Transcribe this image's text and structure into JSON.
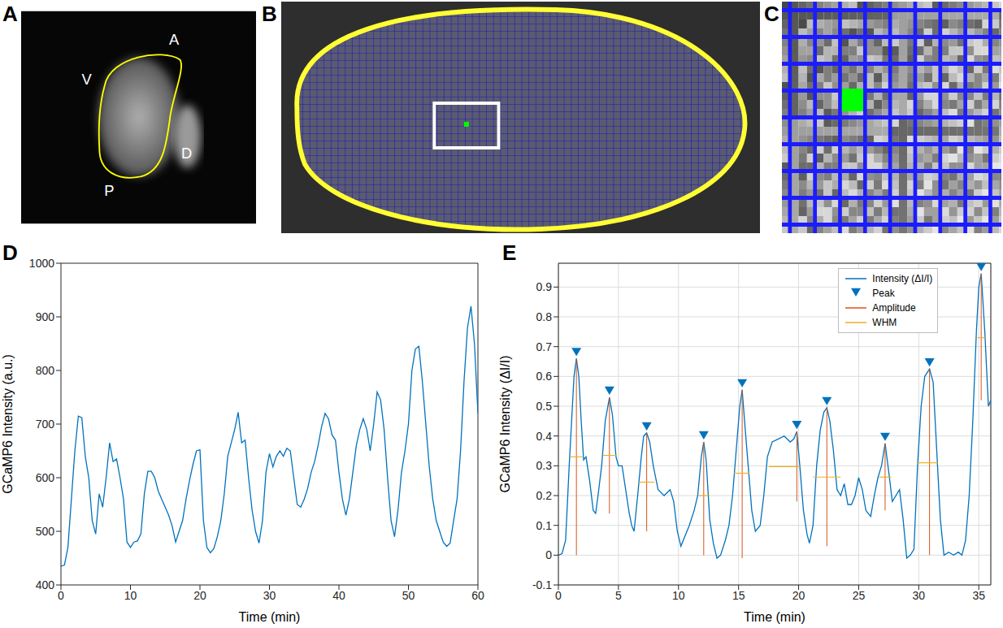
{
  "panel_letters": [
    "A",
    "B",
    "C",
    "D",
    "E"
  ],
  "image_labels": [
    "A",
    "V",
    "D",
    "P"
  ],
  "chart_data": [
    {
      "type": "line",
      "x_label": "Time (min)",
      "y_label": "GCaMP6 Intensity (a.u.)",
      "x": [
        0,
        0.5,
        1,
        1.5,
        2,
        2.5,
        3,
        3.5,
        4,
        4.5,
        5,
        5.5,
        6,
        6.5,
        7,
        7.5,
        8,
        8.5,
        9,
        9.5,
        10,
        10.5,
        11,
        11.5,
        12,
        12.5,
        13,
        13.5,
        14,
        14.5,
        15,
        15.5,
        16,
        16.5,
        17,
        17.5,
        18,
        18.5,
        19,
        19.5,
        20,
        20.5,
        21,
        21.5,
        22,
        22.5,
        23,
        23.5,
        24,
        24.5,
        25,
        25.5,
        26,
        26.5,
        27,
        27.5,
        28,
        28.5,
        29,
        29.5,
        30,
        30.5,
        31,
        31.5,
        32,
        32.5,
        33,
        33.5,
        34,
        34.5,
        35,
        35.5,
        36,
        36.5,
        37,
        37.5,
        38,
        38.5,
        39,
        39.5,
        40,
        40.5,
        41,
        41.5,
        42,
        42.5,
        43,
        43.5,
        44,
        44.5,
        45,
        45.5,
        46,
        46.5,
        47,
        47.5,
        48,
        48.5,
        49,
        49.5,
        50,
        50.5,
        51,
        51.5,
        52,
        52.5,
        53,
        53.5,
        54,
        54.5,
        55,
        55.5,
        56,
        56.5,
        57,
        57.5,
        58,
        58.5,
        59,
        59.5,
        60
      ],
      "values": [
        435,
        437,
        470,
        560,
        650,
        715,
        712,
        640,
        600,
        520,
        495,
        570,
        545,
        600,
        665,
        630,
        635,
        600,
        560,
        480,
        470,
        480,
        482,
        495,
        570,
        612,
        612,
        600,
        575,
        560,
        545,
        530,
        510,
        480,
        500,
        520,
        560,
        595,
        625,
        650,
        652,
        520,
        470,
        460,
        468,
        490,
        520,
        570,
        640,
        665,
        690,
        722,
        665,
        670,
        600,
        540,
        500,
        478,
        520,
        610,
        645,
        620,
        640,
        650,
        640,
        655,
        650,
        600,
        550,
        545,
        560,
        580,
        610,
        630,
        660,
        695,
        720,
        710,
        680,
        670,
        610,
        560,
        530,
        560,
        610,
        660,
        690,
        710,
        690,
        650,
        700,
        760,
        745,
        690,
        600,
        520,
        490,
        540,
        610,
        650,
        700,
        800,
        840,
        845,
        780,
        700,
        620,
        560,
        520,
        500,
        480,
        472,
        478,
        520,
        560,
        650,
        780,
        880,
        920,
        850,
        720
      ],
      "color": "#0072bd",
      "xlim": [
        0,
        60
      ],
      "xticks": [
        0,
        10,
        20,
        30,
        40,
        50,
        60
      ],
      "ylim": [
        400,
        1000
      ],
      "yticks": [
        400,
        500,
        600,
        700,
        800,
        900,
        1000
      ],
      "grid": false
    },
    {
      "type": "line",
      "x_label": "Time (min)",
      "y_label": "GCaMP6 Intensity (ΔI/I)",
      "xlim": [
        0,
        36
      ],
      "xticks": [
        0,
        5,
        10,
        15,
        20,
        25,
        30,
        35
      ],
      "ylim": [
        -0.1,
        0.98
      ],
      "yticks": [
        -0.1,
        0,
        0.1,
        0.2,
        0.3,
        0.4,
        0.5,
        0.6,
        0.7,
        0.8,
        0.9
      ],
      "grid": true,
      "legend": "upper right",
      "series": [
        {
          "name": "Intensity (ΔI/I)",
          "type": "line",
          "color": "#0072bd",
          "x": [
            0,
            0.3,
            0.6,
            0.9,
            1.1,
            1.3,
            1.5,
            1.7,
            1.9,
            2.1,
            2.3,
            2.6,
            2.9,
            3.1,
            3.3,
            3.6,
            3.9,
            4.25,
            4.5,
            4.8,
            5.0,
            5.3,
            5.6,
            5.9,
            6.1,
            6.3,
            6.6,
            6.9,
            7.1,
            7.35,
            7.6,
            7.9,
            8.3,
            8.8,
            9.3,
            9.6,
            9.9,
            10.2,
            10.5,
            10.9,
            11.3,
            11.6,
            11.9,
            12.1,
            12.3,
            12.6,
            12.9,
            13.2,
            13.5,
            13.9,
            14.2,
            14.5,
            14.8,
            15.1,
            15.3,
            15.5,
            15.8,
            16.1,
            16.4,
            16.8,
            17.1,
            17.4,
            17.8,
            18.3,
            18.8,
            19.3,
            19.6,
            19.85,
            20.1,
            20.4,
            20.7,
            20.9,
            21.2,
            21.5,
            21.8,
            22.1,
            22.35,
            22.6,
            22.9,
            23.2,
            23.5,
            23.8,
            24.1,
            24.4,
            24.7,
            25.0,
            25.3,
            25.6,
            26.0,
            26.3,
            26.6,
            26.9,
            27.2,
            27.5,
            27.8,
            28.1,
            28.4,
            28.7,
            29.0,
            29.3,
            29.6,
            29.9,
            30.2,
            30.5,
            30.9,
            31.2,
            31.5,
            31.8,
            32.1,
            32.5,
            32.9,
            33.3,
            33.6,
            33.9,
            34.2,
            34.5,
            34.8,
            35.0,
            35.2,
            35.5,
            35.8,
            36.0
          ],
          "values": [
            0.0,
            0.005,
            0.05,
            0.3,
            0.45,
            0.6,
            0.66,
            0.6,
            0.45,
            0.32,
            0.33,
            0.25,
            0.15,
            0.14,
            0.2,
            0.3,
            0.45,
            0.53,
            0.47,
            0.33,
            0.3,
            0.3,
            0.22,
            0.14,
            0.1,
            0.08,
            0.2,
            0.33,
            0.4,
            0.41,
            0.38,
            0.3,
            0.22,
            0.2,
            0.22,
            0.18,
            0.08,
            0.03,
            0.06,
            0.1,
            0.15,
            0.2,
            0.33,
            0.38,
            0.32,
            0.12,
            0.04,
            -0.01,
            0.0,
            0.05,
            0.1,
            0.2,
            0.35,
            0.5,
            0.555,
            0.45,
            0.3,
            0.15,
            0.08,
            0.1,
            0.2,
            0.33,
            0.38,
            0.39,
            0.4,
            0.38,
            0.39,
            0.415,
            0.3,
            0.15,
            0.07,
            0.04,
            0.1,
            0.3,
            0.42,
            0.48,
            0.495,
            0.45,
            0.35,
            0.22,
            0.2,
            0.24,
            0.17,
            0.17,
            0.2,
            0.26,
            0.22,
            0.15,
            0.13,
            0.2,
            0.26,
            0.3,
            0.375,
            0.28,
            0.18,
            0.2,
            0.22,
            0.12,
            -0.01,
            0.0,
            0.02,
            0.3,
            0.5,
            0.6,
            0.625,
            0.58,
            0.35,
            0.12,
            0.0,
            0.01,
            0.0,
            0.01,
            0.0,
            0.05,
            0.2,
            0.45,
            0.75,
            0.9,
            0.945,
            0.75,
            0.5,
            0.52
          ]
        },
        {
          "name": "Peak",
          "type": "scatter",
          "marker": "triangle-down",
          "color": "#0072bd",
          "x": [
            1.5,
            4.25,
            7.35,
            12.1,
            15.3,
            19.85,
            22.35,
            27.2,
            30.9,
            35.2
          ],
          "values": [
            0.66,
            0.53,
            0.41,
            0.38,
            0.555,
            0.415,
            0.495,
            0.375,
            0.625,
            0.945
          ]
        },
        {
          "name": "Amplitude",
          "type": "vline",
          "color": "#d95319",
          "x": [
            1.5,
            4.25,
            7.35,
            12.1,
            15.3,
            19.85,
            22.35,
            27.2,
            30.9,
            35.2
          ],
          "values": [
            0.66,
            0.53,
            0.41,
            0.38,
            0.555,
            0.415,
            0.495,
            0.375,
            0.625,
            0.945
          ],
          "base": [
            0.0,
            0.14,
            0.08,
            0.0,
            -0.01,
            0.18,
            0.03,
            0.15,
            0.0,
            0.52
          ]
        },
        {
          "name": "WHM",
          "type": "hline",
          "color": "#edb120",
          "values": [
            0.33,
            0.335,
            0.245,
            0.2,
            0.275,
            0.297,
            0.262,
            0.262,
            0.31,
            0.73
          ],
          "x_start": [
            1.0,
            3.7,
            6.7,
            11.7,
            14.6,
            17.5,
            21.2,
            26.7,
            29.9,
            34.9
          ],
          "x_end": [
            2.0,
            4.8,
            8.0,
            12.6,
            15.9,
            20.0,
            23.5,
            27.7,
            31.6,
            35.5
          ]
        }
      ]
    }
  ]
}
